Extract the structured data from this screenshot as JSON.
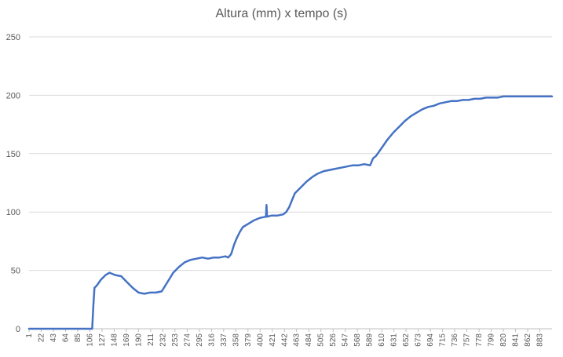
{
  "chart_data": {
    "type": "line",
    "title": "Altura (mm) x tempo (s)",
    "xlabel": "",
    "ylabel": "",
    "ylim": [
      0,
      250
    ],
    "yticks": [
      0,
      50,
      100,
      150,
      200,
      250
    ],
    "xlim": [
      1,
      904
    ],
    "xticks": [
      1,
      22,
      43,
      64,
      85,
      106,
      127,
      148,
      169,
      190,
      211,
      232,
      253,
      274,
      295,
      316,
      337,
      358,
      379,
      400,
      421,
      442,
      463,
      484,
      505,
      526,
      547,
      568,
      589,
      610,
      631,
      652,
      673,
      694,
      715,
      736,
      757,
      778,
      799,
      820,
      841,
      862,
      883
    ],
    "grid": "horizontal",
    "legend": "none",
    "line_color": "#4472C4",
    "series": [
      {
        "x": [
          1,
          50,
          110,
          112,
          114,
          118,
          125,
          133,
          140,
          150,
          160,
          170,
          180,
          190,
          200,
          210,
          220,
          230,
          240,
          250,
          260,
          270,
          280,
          290,
          300,
          310,
          320,
          330,
          340,
          345,
          350,
          355,
          360,
          365,
          370,
          380,
          390,
          400,
          410,
          411,
          412,
          420,
          430,
          440,
          445,
          450,
          455,
          460,
          470,
          480,
          490,
          500,
          510,
          520,
          530,
          540,
          550,
          560,
          570,
          580,
          590,
          595,
          600,
          610,
          620,
          630,
          640,
          650,
          660,
          670,
          680,
          690,
          700,
          710,
          720,
          730,
          740,
          750,
          760,
          770,
          780,
          790,
          800,
          810,
          820,
          830,
          840,
          850,
          860,
          870,
          880,
          890,
          900,
          904
        ],
        "y": [
          0,
          0,
          0,
          20,
          35,
          37,
          42,
          46,
          48,
          46,
          45,
          40,
          35,
          31,
          30,
          31,
          31,
          32,
          40,
          48,
          53,
          57,
          59,
          60,
          61,
          60,
          61,
          61,
          62,
          61,
          64,
          72,
          78,
          83,
          87,
          90,
          93,
          95,
          96,
          106,
          96,
          97,
          97,
          98,
          100,
          104,
          110,
          116,
          121,
          126,
          130,
          133,
          135,
          136,
          137,
          138,
          139,
          140,
          140,
          141,
          140,
          146,
          148,
          155,
          162,
          168,
          173,
          178,
          182,
          185,
          188,
          190,
          191,
          193,
          194,
          195,
          195,
          196,
          196,
          197,
          197,
          198,
          198,
          198,
          199,
          199,
          199,
          199,
          199,
          199,
          199,
          199,
          199,
          199
        ]
      }
    ]
  }
}
